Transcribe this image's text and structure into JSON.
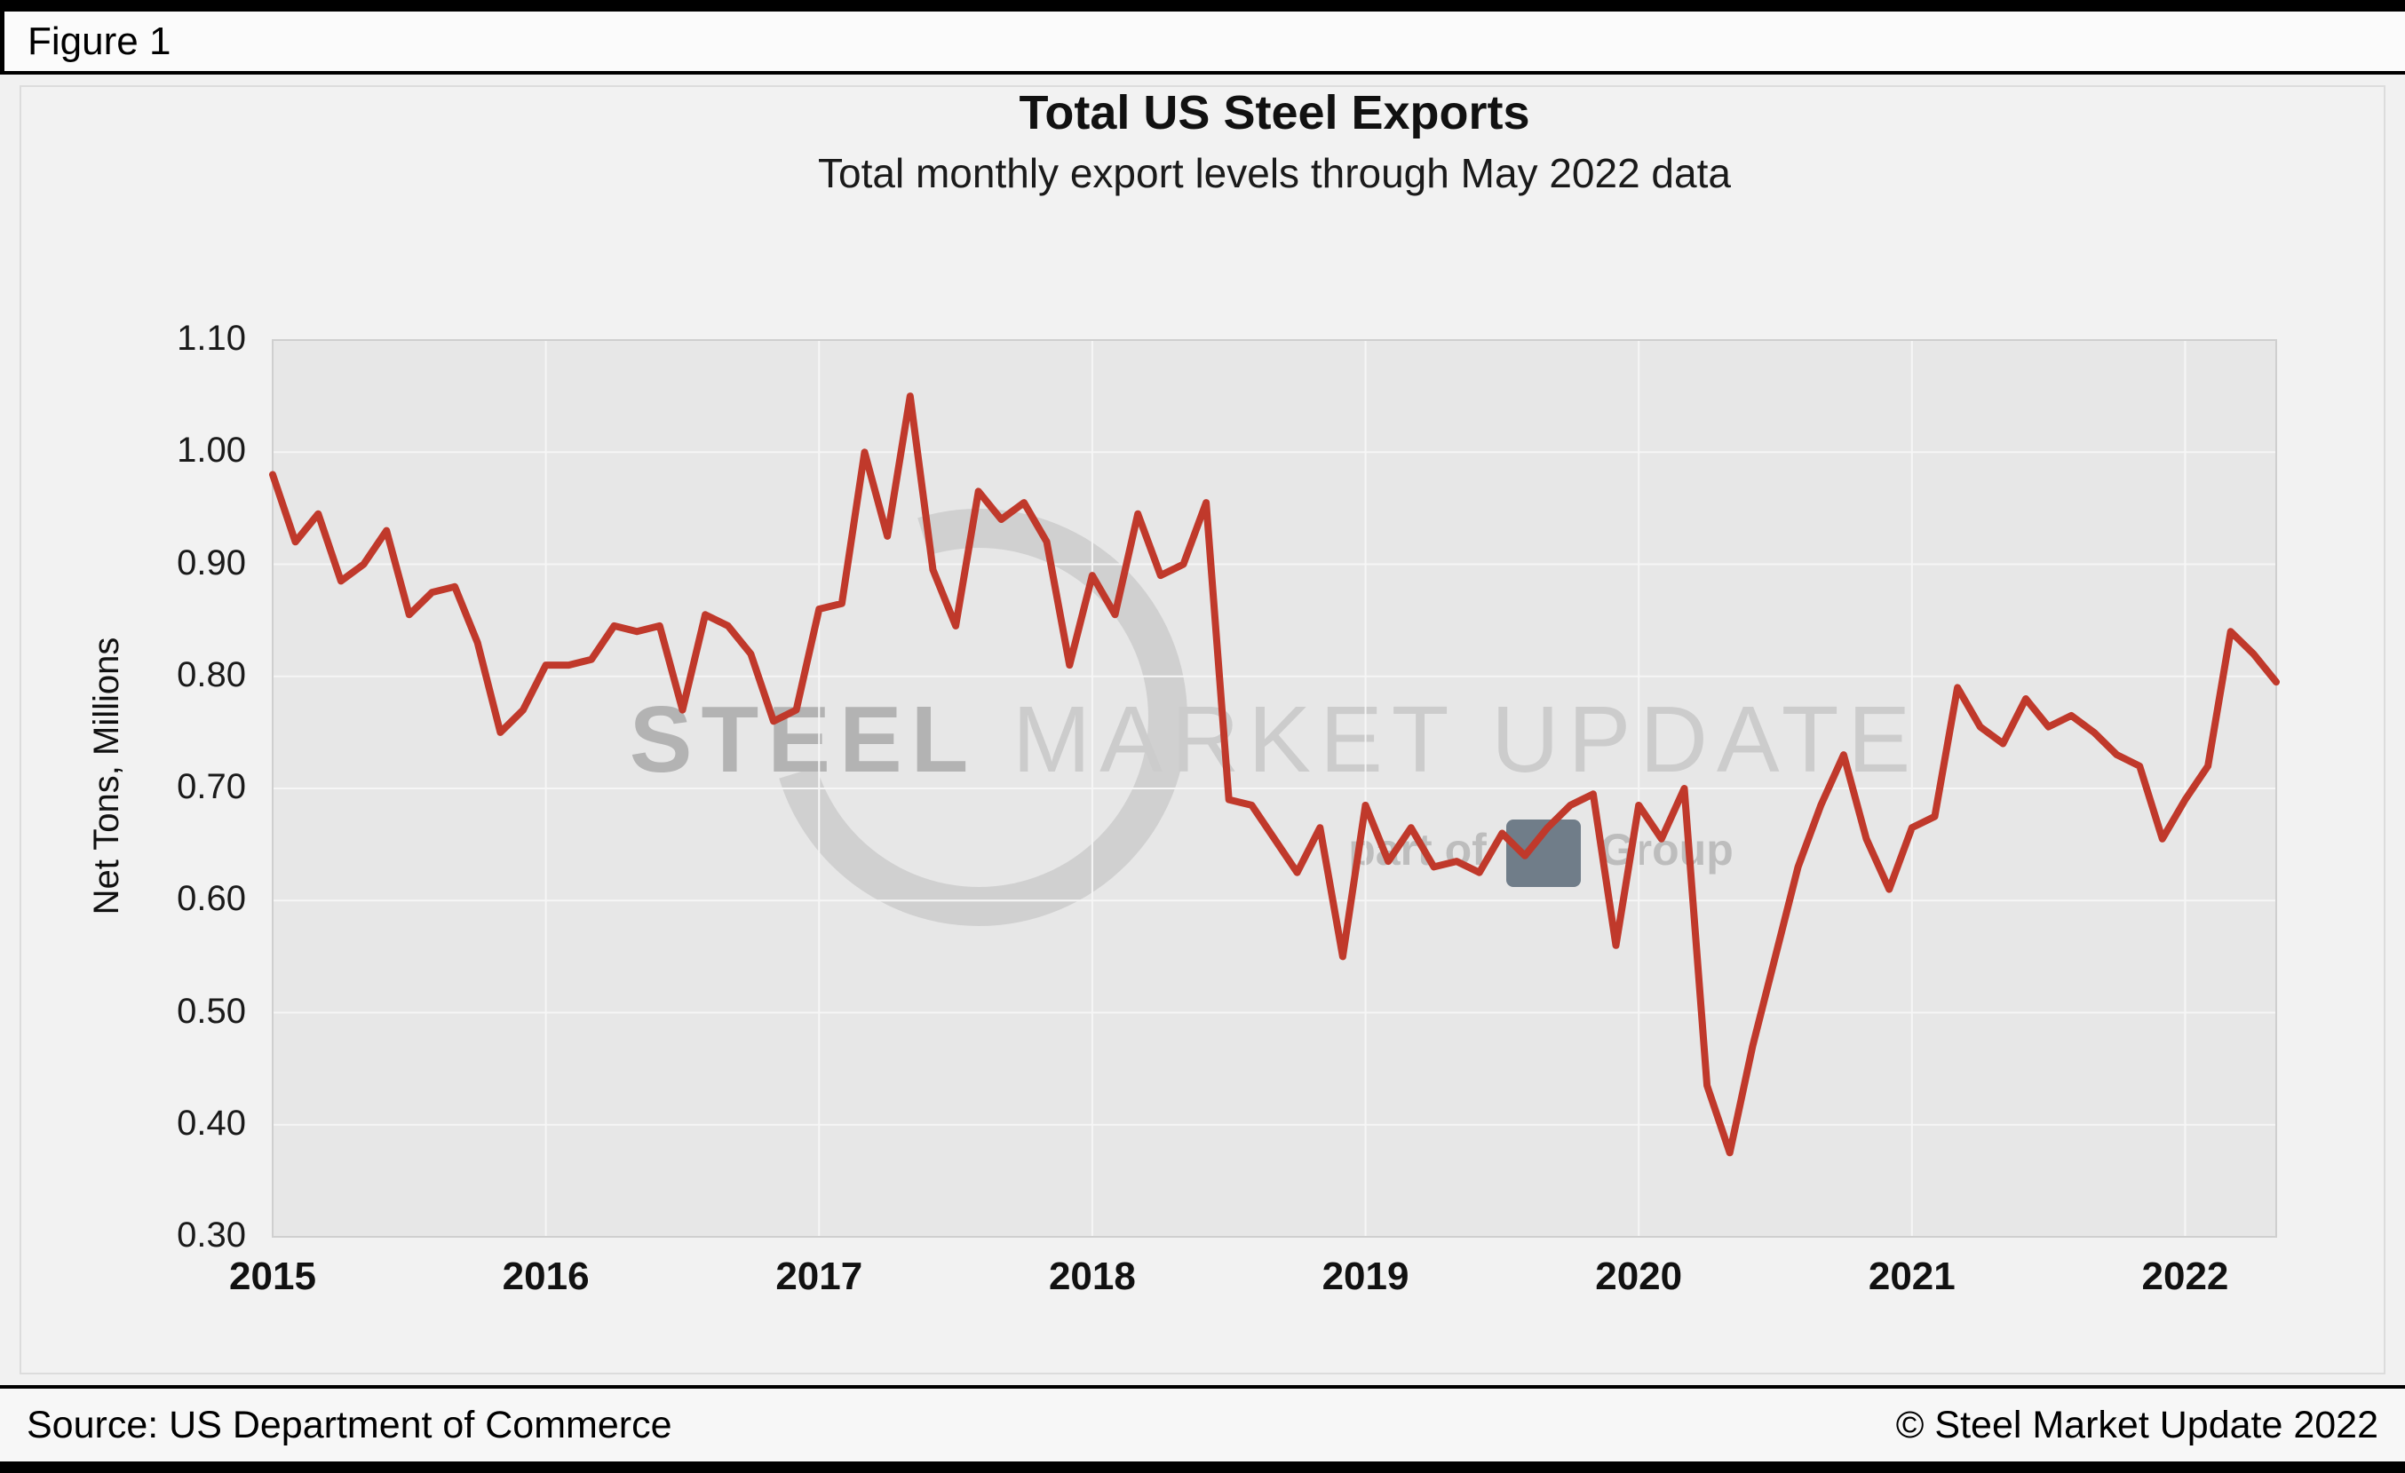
{
  "figure": {
    "label": "Figure 1"
  },
  "chart_data": {
    "type": "line",
    "title": "Total US Steel Exports",
    "subtitle": "Total monthly export levels through May 2022 data",
    "ylabel": "Net Tons, Millions",
    "xlabel": "",
    "x_ticks": [
      "2015",
      "2016",
      "2017",
      "2018",
      "2019",
      "2020",
      "2021",
      "2022"
    ],
    "y_ticks": [
      "1.10",
      "1.00",
      "0.90",
      "0.80",
      "0.70",
      "0.60",
      "0.50",
      "0.40",
      "0.30"
    ],
    "ylim": [
      0.3,
      1.1
    ],
    "months_per_tick": 12,
    "grid": true,
    "legend_position": "none",
    "line_color": "#c0392b",
    "x_range": "Jan 2015 - May 2022",
    "series": [
      {
        "name": "Total US Steel Exports (Net Tons, Millions)",
        "start": "2015-01",
        "end": "2022-05",
        "values": [
          0.98,
          0.92,
          0.945,
          0.885,
          0.9,
          0.93,
          0.855,
          0.875,
          0.88,
          0.83,
          0.75,
          0.77,
          0.81,
          0.81,
          0.815,
          0.845,
          0.84,
          0.845,
          0.77,
          0.855,
          0.845,
          0.82,
          0.76,
          0.77,
          0.86,
          0.865,
          1.0,
          0.925,
          1.05,
          0.895,
          0.845,
          0.965,
          0.94,
          0.955,
          0.92,
          0.81,
          0.89,
          0.855,
          0.945,
          0.89,
          0.9,
          0.955,
          0.69,
          0.685,
          0.655,
          0.625,
          0.665,
          0.55,
          0.685,
          0.635,
          0.665,
          0.63,
          0.635,
          0.625,
          0.66,
          0.64,
          0.665,
          0.685,
          0.695,
          0.56,
          0.685,
          0.655,
          0.7,
          0.435,
          0.375,
          0.47,
          0.55,
          0.63,
          0.685,
          0.73,
          0.655,
          0.61,
          0.665,
          0.675,
          0.79,
          0.755,
          0.74,
          0.78,
          0.755,
          0.765,
          0.75,
          0.73,
          0.72,
          0.655,
          0.69,
          0.72,
          0.84,
          0.82,
          0.795
        ]
      }
    ]
  },
  "watermark": {
    "brand_strong": "STEEL",
    "brand_rest": " MARKET UPDATE",
    "tagline_prefix": "part of",
    "tagline_suffix": "Group"
  },
  "footer": {
    "source": "Source: US Department of Commerce",
    "copyright": "© Steel Market Update 2022"
  },
  "colors": {
    "line": "#c0392b",
    "plot_background": "#e7e7e7",
    "gridline": "#f6f6f6",
    "plot_border": "#cfcfcf"
  }
}
